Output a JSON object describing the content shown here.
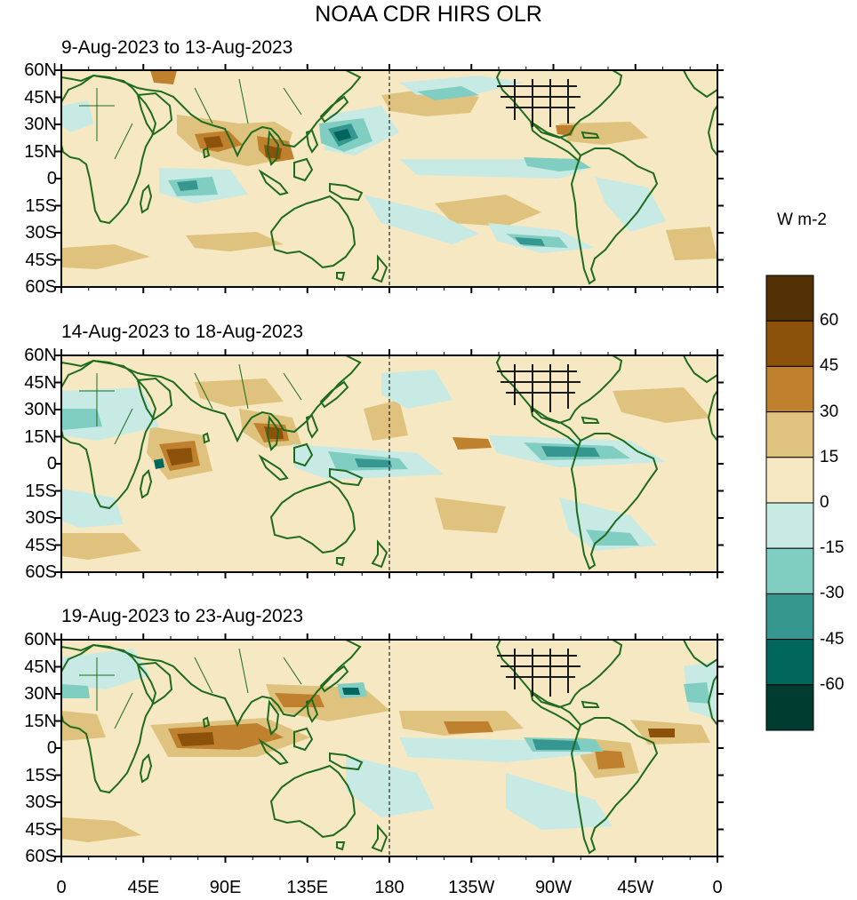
{
  "title": "NOAA CDR HIRS OLR",
  "panels": [
    {
      "date_range": "9-Aug-2023 to 13-Aug-2023"
    },
    {
      "date_range": "14-Aug-2023 to 18-Aug-2023"
    },
    {
      "date_range": "19-Aug-2023 to 23-Aug-2023"
    }
  ],
  "lat_labels": [
    "60N",
    "45N",
    "30N",
    "15N",
    "0",
    "15S",
    "30S",
    "45S",
    "60S"
  ],
  "lon_labels": [
    "0",
    "45E",
    "90E",
    "135E",
    "180",
    "135W",
    "90W",
    "45W",
    "0"
  ],
  "colorbar": {
    "units": "W m-2",
    "labels": [
      "60",
      "45",
      "30",
      "15",
      "0",
      "-15",
      "-30",
      "-45",
      "-60"
    ],
    "colors": [
      "#543005",
      "#8c510a",
      "#bf812d",
      "#dfc27d",
      "#f6e8c3",
      "#c7eae5",
      "#80cdc1",
      "#35978f",
      "#01665e",
      "#003c30"
    ]
  },
  "palette": {
    "coast": "#1e6b1e",
    "country_dense": "#1a1a1a"
  }
}
